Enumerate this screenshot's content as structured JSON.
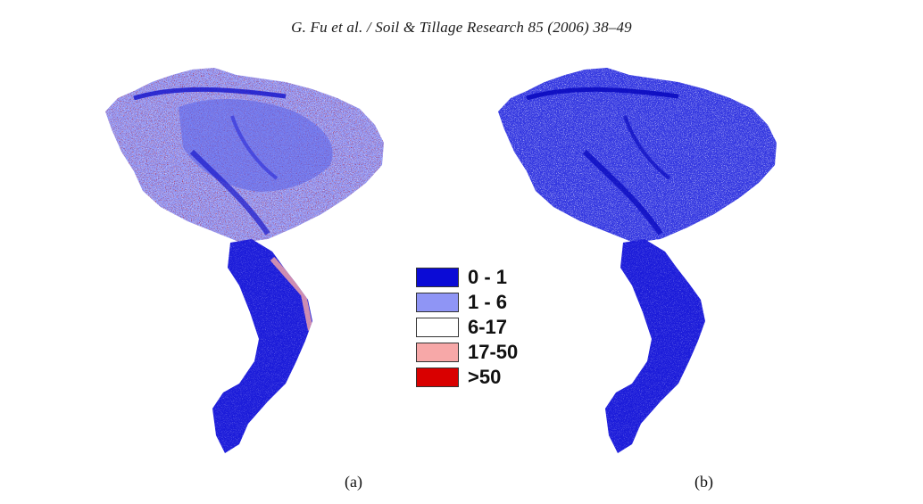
{
  "header": {
    "citation": "G. Fu et al. / Soil & Tillage Research 85 (2006) 38–49"
  },
  "legend": {
    "items": [
      {
        "label": "0 - 1",
        "color": "#0b0bd6"
      },
      {
        "label": "1 - 6",
        "color": "#8f95f5"
      },
      {
        "label": "6-17",
        "color": "#ffffff"
      },
      {
        "label": "17-50",
        "color": "#f7a8a8"
      },
      {
        "label": ">50",
        "color": "#d90000"
      }
    ]
  },
  "panels": [
    {
      "caption": "(a)"
    },
    {
      "caption": "(b)"
    }
  ]
}
